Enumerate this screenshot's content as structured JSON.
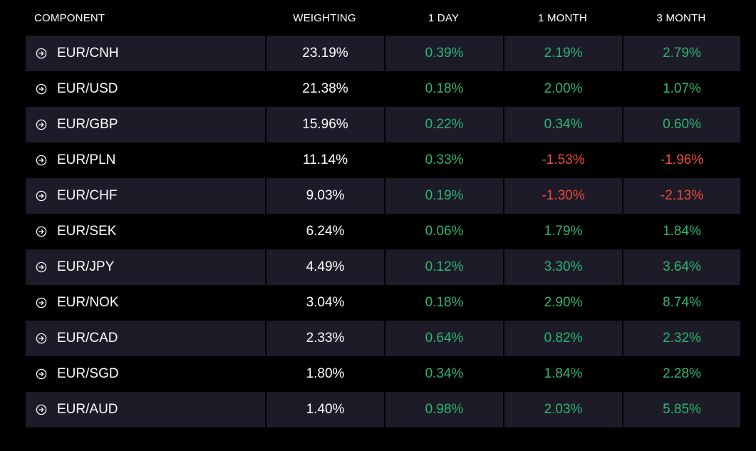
{
  "colors": {
    "positive": "#2bb673",
    "negative": "#f04a3a",
    "row_shaded": "#1c1b27",
    "background": "#000000",
    "text": "#ffffff"
  },
  "headers": {
    "component": "COMPONENT",
    "weighting": "WEIGHTING",
    "one_day": "1 DAY",
    "one_month": "1 MONTH",
    "three_month": "3 MONTH"
  },
  "row_icon": "circle-arrow-right-icon",
  "rows": [
    {
      "component": "EUR/CNH",
      "weighting": "23.19%",
      "one_day": "0.39%",
      "one_month": "2.19%",
      "three_month": "2.79%"
    },
    {
      "component": "EUR/USD",
      "weighting": "21.38%",
      "one_day": "0.18%",
      "one_month": "2.00%",
      "three_month": "1.07%"
    },
    {
      "component": "EUR/GBP",
      "weighting": "15.96%",
      "one_day": "0.22%",
      "one_month": "0.34%",
      "three_month": "0.60%"
    },
    {
      "component": "EUR/PLN",
      "weighting": "11.14%",
      "one_day": "0.33%",
      "one_month": "-1.53%",
      "three_month": "-1.96%"
    },
    {
      "component": "EUR/CHF",
      "weighting": "9.03%",
      "one_day": "0.19%",
      "one_month": "-1.30%",
      "three_month": "-2.13%"
    },
    {
      "component": "EUR/SEK",
      "weighting": "6.24%",
      "one_day": "0.06%",
      "one_month": "1.79%",
      "three_month": "1.84%"
    },
    {
      "component": "EUR/JPY",
      "weighting": "4.49%",
      "one_day": "0.12%",
      "one_month": "3.30%",
      "three_month": "3.64%"
    },
    {
      "component": "EUR/NOK",
      "weighting": "3.04%",
      "one_day": "0.18%",
      "one_month": "2.90%",
      "three_month": "8.74%"
    },
    {
      "component": "EUR/CAD",
      "weighting": "2.33%",
      "one_day": "0.64%",
      "one_month": "0.82%",
      "three_month": "2.32%"
    },
    {
      "component": "EUR/SGD",
      "weighting": "1.80%",
      "one_day": "0.34%",
      "one_month": "1.84%",
      "three_month": "2.28%"
    },
    {
      "component": "EUR/AUD",
      "weighting": "1.40%",
      "one_day": "0.98%",
      "one_month": "2.03%",
      "three_month": "5.85%"
    }
  ]
}
